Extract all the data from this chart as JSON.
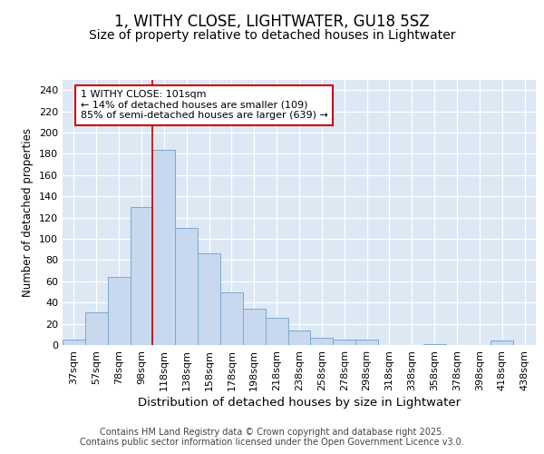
{
  "title1": "1, WITHY CLOSE, LIGHTWATER, GU18 5SZ",
  "title2": "Size of property relative to detached houses in Lightwater",
  "xlabel": "Distribution of detached houses by size in Lightwater",
  "ylabel": "Number of detached properties",
  "bar_labels": [
    "37sqm",
    "57sqm",
    "78sqm",
    "98sqm",
    "118sqm",
    "138sqm",
    "158sqm",
    "178sqm",
    "198sqm",
    "218sqm",
    "238sqm",
    "258sqm",
    "278sqm",
    "298sqm",
    "318sqm",
    "338sqm",
    "358sqm",
    "378sqm",
    "398sqm",
    "418sqm",
    "438sqm"
  ],
  "bar_values": [
    5,
    31,
    64,
    130,
    184,
    110,
    86,
    50,
    34,
    26,
    14,
    7,
    5,
    5,
    0,
    0,
    1,
    0,
    0,
    4,
    0
  ],
  "bar_color": "#c8d8ee",
  "bar_edge_color": "#7aaad0",
  "vline_x": 3.5,
  "vline_color": "#cc0000",
  "annotation_text": "1 WITHY CLOSE: 101sqm\n← 14% of detached houses are smaller (109)\n85% of semi-detached houses are larger (639) →",
  "annotation_box_color": "#ffffff",
  "annotation_box_edge": "#cc0000",
  "ylim": [
    0,
    250
  ],
  "yticks": [
    0,
    20,
    40,
    60,
    80,
    100,
    120,
    140,
    160,
    180,
    200,
    220,
    240
  ],
  "fig_bg": "#ffffff",
  "plot_bg": "#dde8f5",
  "grid_color": "#c0cfe0",
  "footer": "Contains HM Land Registry data © Crown copyright and database right 2025.\nContains public sector information licensed under the Open Government Licence v3.0.",
  "title1_fontsize": 12,
  "title2_fontsize": 10,
  "xlabel_fontsize": 9.5,
  "ylabel_fontsize": 8.5,
  "tick_fontsize": 8,
  "annot_fontsize": 8,
  "footer_fontsize": 7
}
